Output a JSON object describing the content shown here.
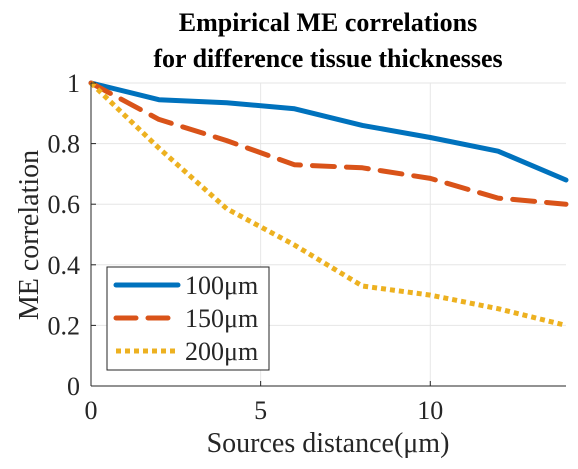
{
  "chart_data": {
    "type": "line",
    "title": [
      "Empirical ME correlations",
      "for difference tissue thicknesses"
    ],
    "xlabel": "Sources distance(μm)",
    "ylabel": "ME correlation",
    "xlim": [
      0,
      14
    ],
    "ylim": [
      0,
      1
    ],
    "xticks": [
      0,
      5,
      10
    ],
    "yticks": [
      0,
      0.2,
      0.4,
      0.6,
      0.8,
      1
    ],
    "xtick_labels": [
      "0",
      "5",
      "10"
    ],
    "ytick_labels": [
      "0",
      "0.2",
      "0.4",
      "0.6",
      "0.8",
      "1"
    ],
    "grid": true,
    "legend_position": "bottom-left",
    "series": [
      {
        "name": "100μm",
        "color": "#0072BD",
        "style": "solid",
        "x": [
          0,
          2,
          4,
          6,
          8,
          10,
          12,
          14
        ],
        "values": [
          1.0,
          0.945,
          0.935,
          0.915,
          0.86,
          0.82,
          0.775,
          0.68
        ]
      },
      {
        "name": "150μm",
        "color": "#D95319",
        "style": "dashed",
        "x": [
          0,
          2,
          4,
          6,
          8,
          10,
          12,
          14
        ],
        "values": [
          1.0,
          0.88,
          0.81,
          0.73,
          0.72,
          0.685,
          0.62,
          0.6
        ]
      },
      {
        "name": "200μm",
        "color": "#EDB120",
        "style": "dotted",
        "x": [
          0,
          2,
          4,
          6,
          8,
          10,
          12,
          14
        ],
        "values": [
          1.0,
          0.785,
          0.585,
          0.465,
          0.33,
          0.3,
          0.255,
          0.2
        ]
      }
    ]
  }
}
